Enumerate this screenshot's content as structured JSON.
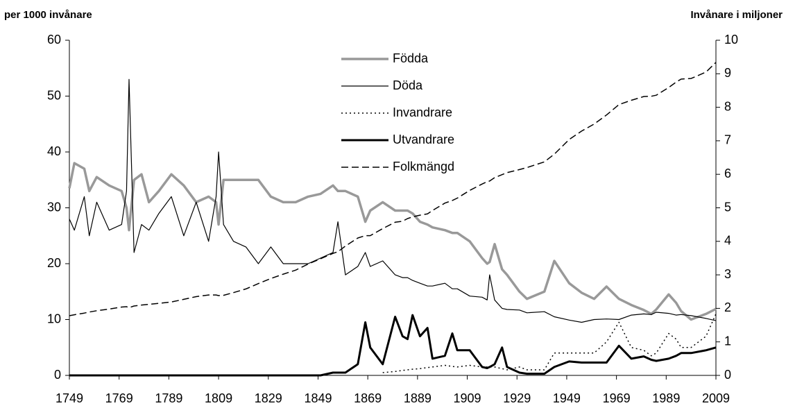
{
  "chart_data": {
    "type": "line",
    "y_label": "per 1000 invånare",
    "y2_label": "Invånare i miljoner",
    "x": [
      1749,
      1751,
      1755,
      1757,
      1760,
      1765,
      1770,
      1772,
      1773,
      1775,
      1778,
      1781,
      1785,
      1790,
      1795,
      1800,
      1805,
      1808,
      1809,
      1811,
      1815,
      1820,
      1825,
      1830,
      1835,
      1840,
      1845,
      1850,
      1855,
      1857,
      1860,
      1865,
      1868,
      1870,
      1875,
      1880,
      1883,
      1885,
      1887,
      1890,
      1893,
      1895,
      1900,
      1903,
      1905,
      1910,
      1915,
      1917,
      1918,
      1920,
      1923,
      1925,
      1930,
      1933,
      1940,
      1944,
      1950,
      1955,
      1960,
      1965,
      1970,
      1975,
      1980,
      1983,
      1985,
      1990,
      1993,
      1995,
      1999,
      2005,
      2009
    ],
    "series": [
      {
        "name": "Födda",
        "color": "#999999",
        "line_width": 3.5,
        "line_style": "solid",
        "values": [
          33.5,
          38,
          37,
          33,
          35.5,
          34,
          33,
          30,
          26,
          35,
          36,
          31,
          33,
          36,
          34,
          31,
          32,
          31,
          27,
          35,
          35,
          35,
          35,
          32,
          31,
          31,
          32,
          32.5,
          34,
          33,
          33,
          32,
          27.5,
          29.5,
          31,
          29.5,
          29.5,
          29.5,
          29,
          27.5,
          27,
          26.5,
          26,
          25.5,
          25.5,
          24,
          21,
          20,
          20.3,
          23.5,
          19,
          18,
          15,
          13.7,
          15,
          20.5,
          16.5,
          14.8,
          13.7,
          15.9,
          13.7,
          12.6,
          11.7,
          11,
          11.8,
          14.5,
          13,
          11.5,
          10,
          11,
          11.9
        ]
      },
      {
        "name": "Döda",
        "color": "#000000",
        "line_width": 1.2,
        "line_style": "solid",
        "values": [
          28,
          26,
          32,
          25,
          31,
          26,
          27,
          33,
          53,
          22,
          27,
          26,
          29,
          32,
          25,
          31,
          24,
          32,
          40,
          27,
          24,
          23,
          20,
          23,
          20,
          20,
          20,
          21,
          22,
          27.5,
          18,
          19.5,
          22,
          19.5,
          20.5,
          18,
          17.5,
          17.5,
          17,
          16.5,
          16,
          16,
          16.5,
          15.5,
          15.5,
          14.2,
          14,
          13.5,
          18,
          13.5,
          12,
          11.8,
          11.7,
          11.2,
          11.4,
          10.5,
          9.9,
          9.5,
          10,
          10.1,
          10,
          10.8,
          11,
          10.9,
          11.3,
          11.1,
          10.8,
          10.9,
          10.7,
          10.2,
          9.8
        ]
      },
      {
        "name": "Invandrare",
        "color": "#000000",
        "line_width": 1.5,
        "line_style": "dotted",
        "values": [
          null,
          null,
          null,
          null,
          null,
          null,
          null,
          null,
          null,
          null,
          null,
          null,
          null,
          null,
          null,
          null,
          null,
          null,
          null,
          null,
          null,
          null,
          null,
          null,
          null,
          null,
          null,
          null,
          null,
          null,
          null,
          null,
          null,
          null,
          0.5,
          0.7,
          0.9,
          1,
          1.1,
          1.2,
          1.4,
          1.5,
          1.8,
          1.6,
          1.5,
          1.8,
          1.5,
          1.5,
          1.5,
          1.5,
          1.2,
          1,
          1.5,
          1,
          1,
          4,
          4,
          4,
          4,
          6,
          9.5,
          5,
          4.5,
          3.5,
          4,
          7.5,
          6.5,
          5,
          5,
          7,
          11
        ]
      },
      {
        "name": "Utvandrare",
        "color": "#000000",
        "line_width": 3,
        "line_style": "solid",
        "values": [
          0,
          0,
          0,
          0,
          0,
          0,
          0,
          0,
          0,
          0,
          0,
          0,
          0,
          0,
          0,
          0,
          0,
          0,
          0,
          0,
          0,
          0,
          0,
          0,
          0,
          0,
          0,
          0,
          0.5,
          0.5,
          0.5,
          2,
          9.5,
          5,
          2,
          10.5,
          7,
          6.5,
          10.8,
          7,
          8.5,
          3,
          3.5,
          7.5,
          4.5,
          4.5,
          1.5,
          1.3,
          1.5,
          2,
          5,
          1.5,
          0.5,
          0.3,
          0.3,
          1.5,
          2.5,
          2.3,
          2.3,
          2.3,
          5.3,
          3,
          3.4,
          2.8,
          2.6,
          3,
          3.5,
          4,
          4,
          4.5,
          5
        ]
      },
      {
        "name": "Folkmängd",
        "color": "#000000",
        "line_width": 1.5,
        "line_style": "dashed",
        "axis": "y2",
        "values": [
          1.78,
          1.81,
          1.86,
          1.89,
          1.93,
          1.98,
          2.04,
          2.05,
          2.02,
          2.07,
          2.1,
          2.12,
          2.15,
          2.19,
          2.27,
          2.35,
          2.4,
          2.4,
          2.38,
          2.39,
          2.47,
          2.58,
          2.74,
          2.89,
          3.02,
          3.14,
          3.32,
          3.48,
          3.64,
          3.69,
          3.86,
          4.1,
          4.17,
          4.17,
          4.38,
          4.57,
          4.6,
          4.68,
          4.73,
          4.78,
          4.82,
          4.92,
          5.14,
          5.22,
          5.29,
          5.52,
          5.71,
          5.78,
          5.8,
          5.9,
          5.99,
          6.05,
          6.14,
          6.2,
          6.37,
          6.6,
          7.04,
          7.29,
          7.5,
          7.77,
          8.08,
          8.21,
          8.32,
          8.33,
          8.36,
          8.59,
          8.75,
          8.84,
          8.86,
          9.05,
          9.34
        ]
      }
    ],
    "xlim": [
      1749,
      2009
    ],
    "xticks": [
      1749,
      1769,
      1789,
      1809,
      1829,
      1849,
      1869,
      1889,
      1909,
      1929,
      1949,
      1969,
      1989,
      2009
    ],
    "ylim": [
      0,
      60
    ],
    "yticks": [
      0,
      10,
      20,
      30,
      40,
      50,
      60
    ],
    "y2lim": [
      0,
      10
    ],
    "y2ticks": [
      0,
      1,
      2,
      3,
      4,
      5,
      6,
      7,
      8,
      9,
      10
    ],
    "grid": false,
    "legend": "top"
  }
}
